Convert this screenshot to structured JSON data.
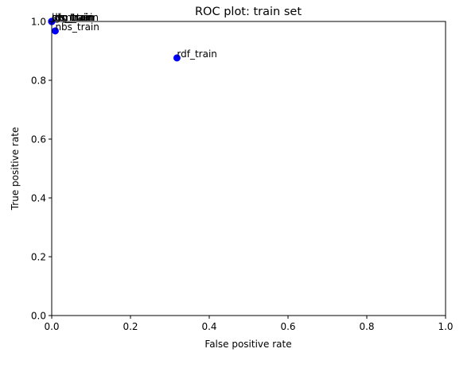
{
  "chart_data": {
    "type": "scatter",
    "title": "ROC plot: train set",
    "xlabel": "False positive rate",
    "ylabel": "True positive rate",
    "xlim": [
      0,
      1
    ],
    "ylim": [
      0,
      1
    ],
    "x_ticks": [
      "0.0",
      "0.2",
      "0.4",
      "0.6",
      "0.8",
      "1.0"
    ],
    "y_ticks": [
      "0.0",
      "0.2",
      "0.4",
      "0.6",
      "0.8",
      "1.0"
    ],
    "grid": false,
    "marker_color": "#0000ff",
    "points": [
      {
        "label": "rdf_train",
        "x": 0.318,
        "y": 0.876
      },
      {
        "label": "nbs_train",
        "x": 0.009,
        "y": 0.968
      },
      {
        "label": "prc_train",
        "x": 0.0,
        "y": 1.0
      },
      {
        "label": "svm_train",
        "x": 0.0,
        "y": 1.0
      },
      {
        "label": "lgs_train",
        "x": 0.0,
        "y": 1.0
      },
      {
        "label": "dtc_train",
        "x": 0.0,
        "y": 1.0
      },
      {
        "label": "ols_train",
        "x": 0.0,
        "y": 1.0
      },
      {
        "label": "rdg_train",
        "x": 0.0,
        "y": 1.0
      }
    ]
  }
}
